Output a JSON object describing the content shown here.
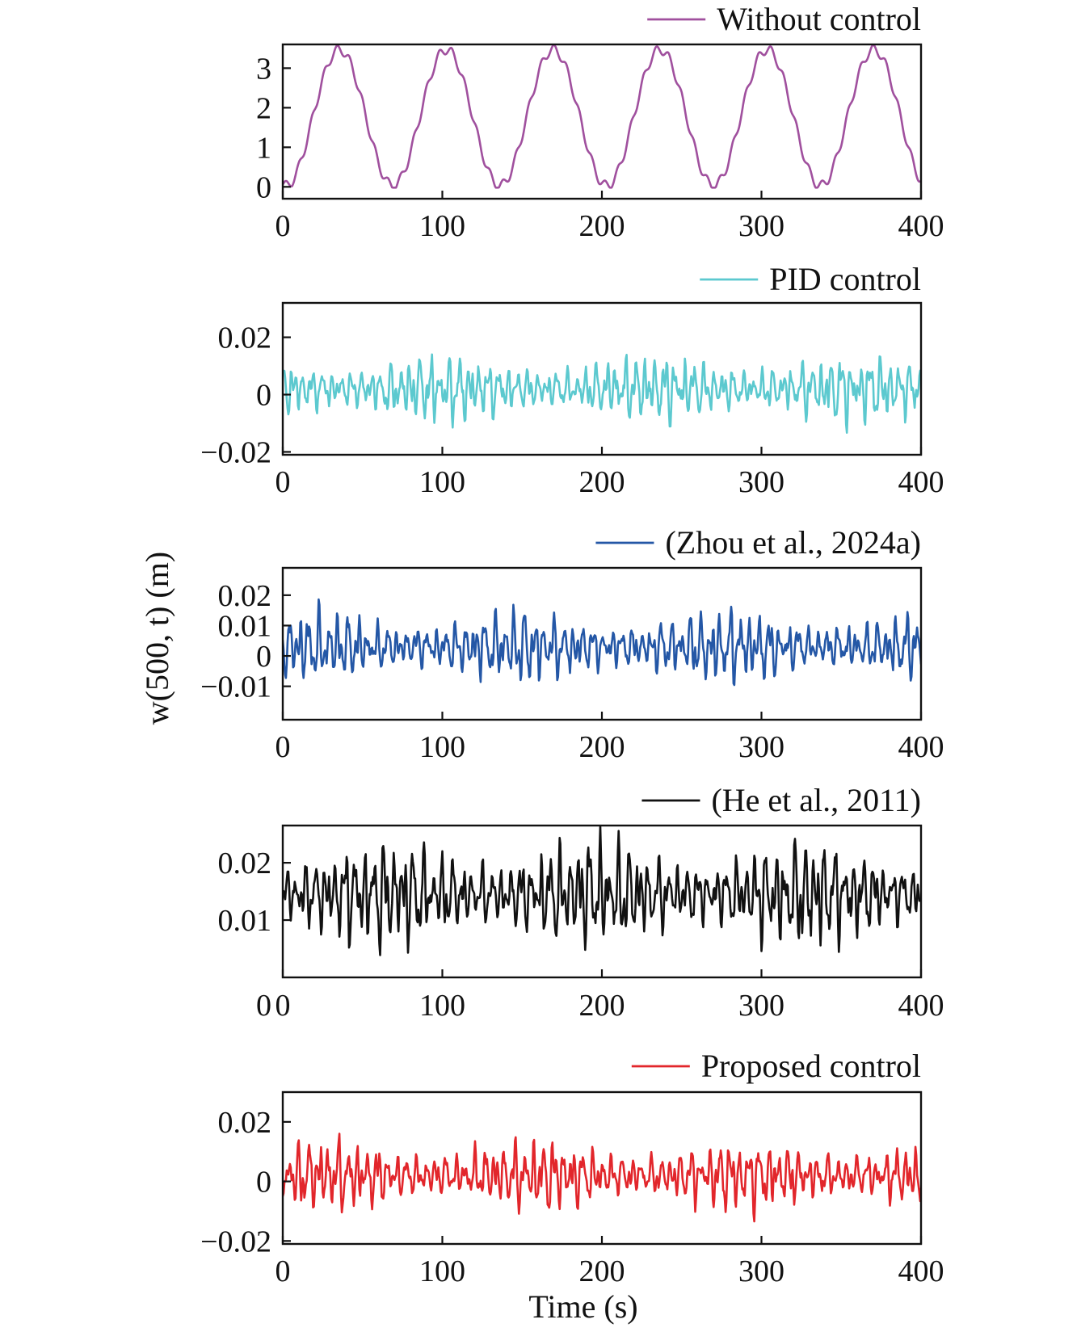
{
  "shared": {
    "ylabel": "w(500, t) (m)",
    "xlabel": "Time (s)"
  },
  "chart_data": [
    {
      "type": "line",
      "legend": "Without control",
      "color": "#a0509e",
      "xlim": [
        0,
        400
      ],
      "ylim": [
        -0.3,
        3.6
      ],
      "xticks": [
        0,
        100,
        200,
        300,
        400
      ],
      "xtick_labels": [
        "0",
        "100",
        "200",
        "300",
        "400"
      ],
      "yticks": [
        0,
        1,
        2,
        3
      ],
      "ytick_labels": [
        "0",
        "1",
        "2",
        "3"
      ],
      "signal": {
        "kind": "sine",
        "offset": 1.75,
        "amp": 1.72,
        "period": 67,
        "ripple": 0.12,
        "ripple_period": 8
      }
    },
    {
      "type": "line",
      "legend": "PID control",
      "color": "#5cc9cf",
      "xlim": [
        0,
        400
      ],
      "ylim": [
        -0.021,
        0.032
      ],
      "xticks": [
        0,
        100,
        200,
        300,
        400
      ],
      "xtick_labels": [
        "0",
        "100",
        "200",
        "300",
        "400"
      ],
      "yticks": [
        -0.02,
        0,
        0.02
      ],
      "ytick_labels": [
        "−0.02",
        "0",
        "0.02"
      ],
      "signal": {
        "kind": "osc",
        "offset": 0.002,
        "amp": 0.012,
        "seed": 3
      }
    },
    {
      "type": "line",
      "legend": "(Zhou et al., 2024a)",
      "color": "#2457a6",
      "xlim": [
        0,
        400
      ],
      "ylim": [
        -0.021,
        0.029
      ],
      "xticks": [
        0,
        100,
        200,
        300,
        400
      ],
      "xtick_labels": [
        "0",
        "100",
        "200",
        "300",
        "400"
      ],
      "yticks": [
        -0.01,
        0,
        0.01,
        0.02
      ],
      "ytick_labels": [
        "−0.01",
        "0",
        "0.01",
        "0.02"
      ],
      "signal": {
        "kind": "osc",
        "offset": 0.003,
        "amp": 0.012,
        "seed": 7
      }
    },
    {
      "type": "line",
      "legend": "(He et al., 2011)",
      "color": "#111111",
      "xlim": [
        0,
        400
      ],
      "ylim": [
        0,
        0.0265
      ],
      "xticks": [
        0,
        100,
        200,
        300,
        400
      ],
      "xtick_labels": [
        "0",
        "100",
        "200",
        "300",
        "400"
      ],
      "yticks": [
        0.01,
        0.02
      ],
      "ytick_labels": [
        "0.01",
        "0.02"
      ],
      "extra_ytick_label": "0",
      "signal": {
        "kind": "osc",
        "offset": 0.0145,
        "amp": 0.0095,
        "seed": 11
      }
    },
    {
      "type": "line",
      "legend": "Proposed control",
      "color": "#e2262b",
      "xlim": [
        0,
        400
      ],
      "ylim": [
        -0.021,
        0.03
      ],
      "xticks": [
        0,
        100,
        200,
        300,
        400
      ],
      "xtick_labels": [
        "0",
        "100",
        "200",
        "300",
        "400"
      ],
      "yticks": [
        -0.02,
        0,
        0.02
      ],
      "ytick_labels": [
        "−0.02",
        "0",
        "0.02"
      ],
      "signal": {
        "kind": "osc",
        "offset": 0.002,
        "amp": 0.012,
        "seed": 19
      }
    }
  ]
}
